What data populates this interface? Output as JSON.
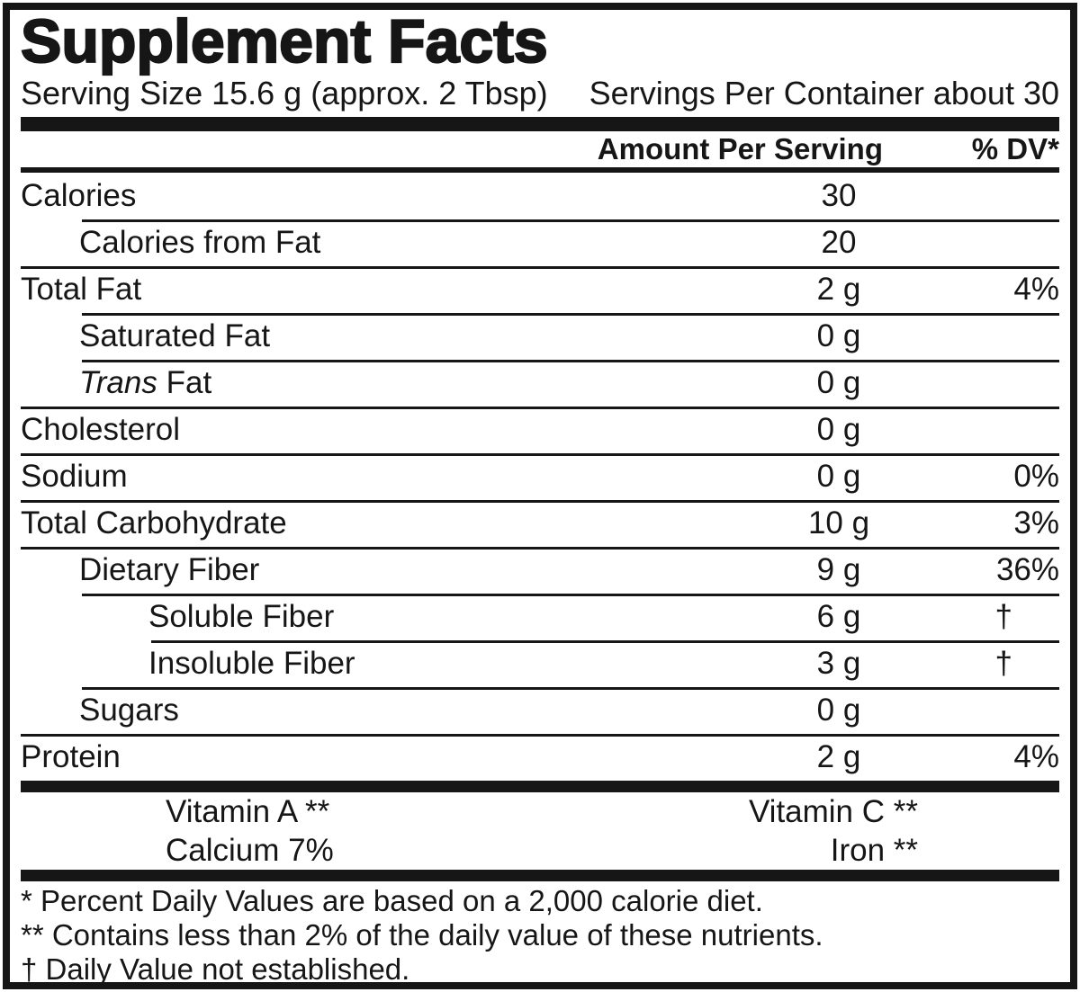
{
  "colors": {
    "ink": "#161616",
    "background": "#ffffff"
  },
  "label": {
    "title": "Supplement Facts",
    "serving_size": "Serving Size 15.6 g (approx. 2 Tbsp)",
    "servings_per_container": "Servings Per Container about 30",
    "header": {
      "amount_label": "Amount Per Serving",
      "dv_label": "% DV*"
    },
    "rows": [
      {
        "name": "Calories",
        "amount": "30",
        "dv": "",
        "indent": 0,
        "sep": null
      },
      {
        "name": "Calories from Fat",
        "amount": "20",
        "dv": "",
        "indent": 1,
        "sep": 1
      },
      {
        "name": "Total Fat",
        "amount": "2 g",
        "dv": "4%",
        "indent": 0,
        "sep": 0
      },
      {
        "name": "Saturated Fat",
        "amount": "0 g",
        "dv": "",
        "indent": 1,
        "sep": 1
      },
      {
        "name": "Trans Fat",
        "amount": "0 g",
        "dv": "",
        "indent": 1,
        "sep": 1,
        "italic_prefix": "Trans"
      },
      {
        "name": "Cholesterol",
        "amount": "0 g",
        "dv": "",
        "indent": 0,
        "sep": 0
      },
      {
        "name": "Sodium",
        "amount": "0 g",
        "dv": "0%",
        "indent": 0,
        "sep": 0
      },
      {
        "name": "Total Carbohydrate",
        "amount": "10 g",
        "dv": "3%",
        "indent": 0,
        "sep": 0
      },
      {
        "name": "Dietary Fiber",
        "amount": "9 g",
        "dv": "36%",
        "indent": 1,
        "sep": 0
      },
      {
        "name": "Soluble Fiber",
        "amount": "6 g",
        "dv": "†",
        "indent": 2,
        "sep": 1
      },
      {
        "name": "Insoluble Fiber",
        "amount": "3 g",
        "dv": "†",
        "indent": 2,
        "sep": 2
      },
      {
        "name": "Sugars",
        "amount": "0 g",
        "dv": "",
        "indent": 1,
        "sep": 1
      },
      {
        "name": "Protein",
        "amount": "2 g",
        "dv": "4%",
        "indent": 0,
        "sep": 0
      }
    ],
    "micronutrients": [
      {
        "left": "Vitamin A **",
        "right": "Vitamin C **"
      },
      {
        "left": "Calcium 7%",
        "right": "Iron **"
      }
    ],
    "footnotes": [
      "* Percent Daily Values are based on a 2,000 calorie diet.",
      "** Contains less than 2% of the daily value of these nutrients.",
      "† Daily Value not established."
    ]
  }
}
